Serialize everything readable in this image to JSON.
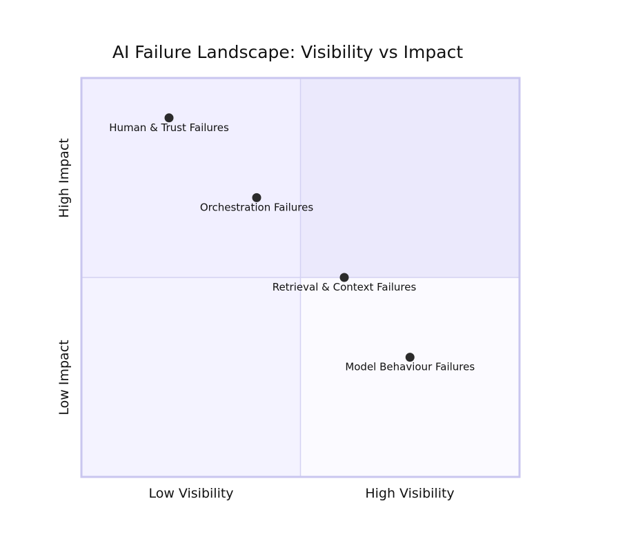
{
  "chart_data": {
    "type": "scatter",
    "title": "AI Failure Landscape: Visibility vs Impact",
    "xlim": [
      0,
      1
    ],
    "ylim": [
      0,
      1
    ],
    "x_axis": {
      "low_label": "Low Visibility",
      "high_label": "High Visibility"
    },
    "y_axis": {
      "low_label": "Low Impact",
      "high_label": "High Impact"
    },
    "quadrants": [
      {
        "position": "top-left",
        "label": "",
        "color": "#f1efff"
      },
      {
        "position": "top-right",
        "label": "",
        "color": "#ebe9fc"
      },
      {
        "position": "bottom-left",
        "label": "",
        "color": "#f4f3ff"
      },
      {
        "position": "bottom-right",
        "label": "",
        "color": "#fbfaff"
      }
    ],
    "points": [
      {
        "label": "Human & Trust Failures",
        "x": 0.2,
        "y": 0.9
      },
      {
        "label": "Orchestration Failures",
        "x": 0.4,
        "y": 0.7
      },
      {
        "label": "Retrieval & Context Failures",
        "x": 0.6,
        "y": 0.5
      },
      {
        "label": "Model Behaviour Failures",
        "x": 0.75,
        "y": 0.3
      }
    ],
    "colors": {
      "point": "#2b2b2b",
      "border": "#c9c6ef",
      "divider": "#d4d2f2",
      "text": "#111111"
    }
  }
}
